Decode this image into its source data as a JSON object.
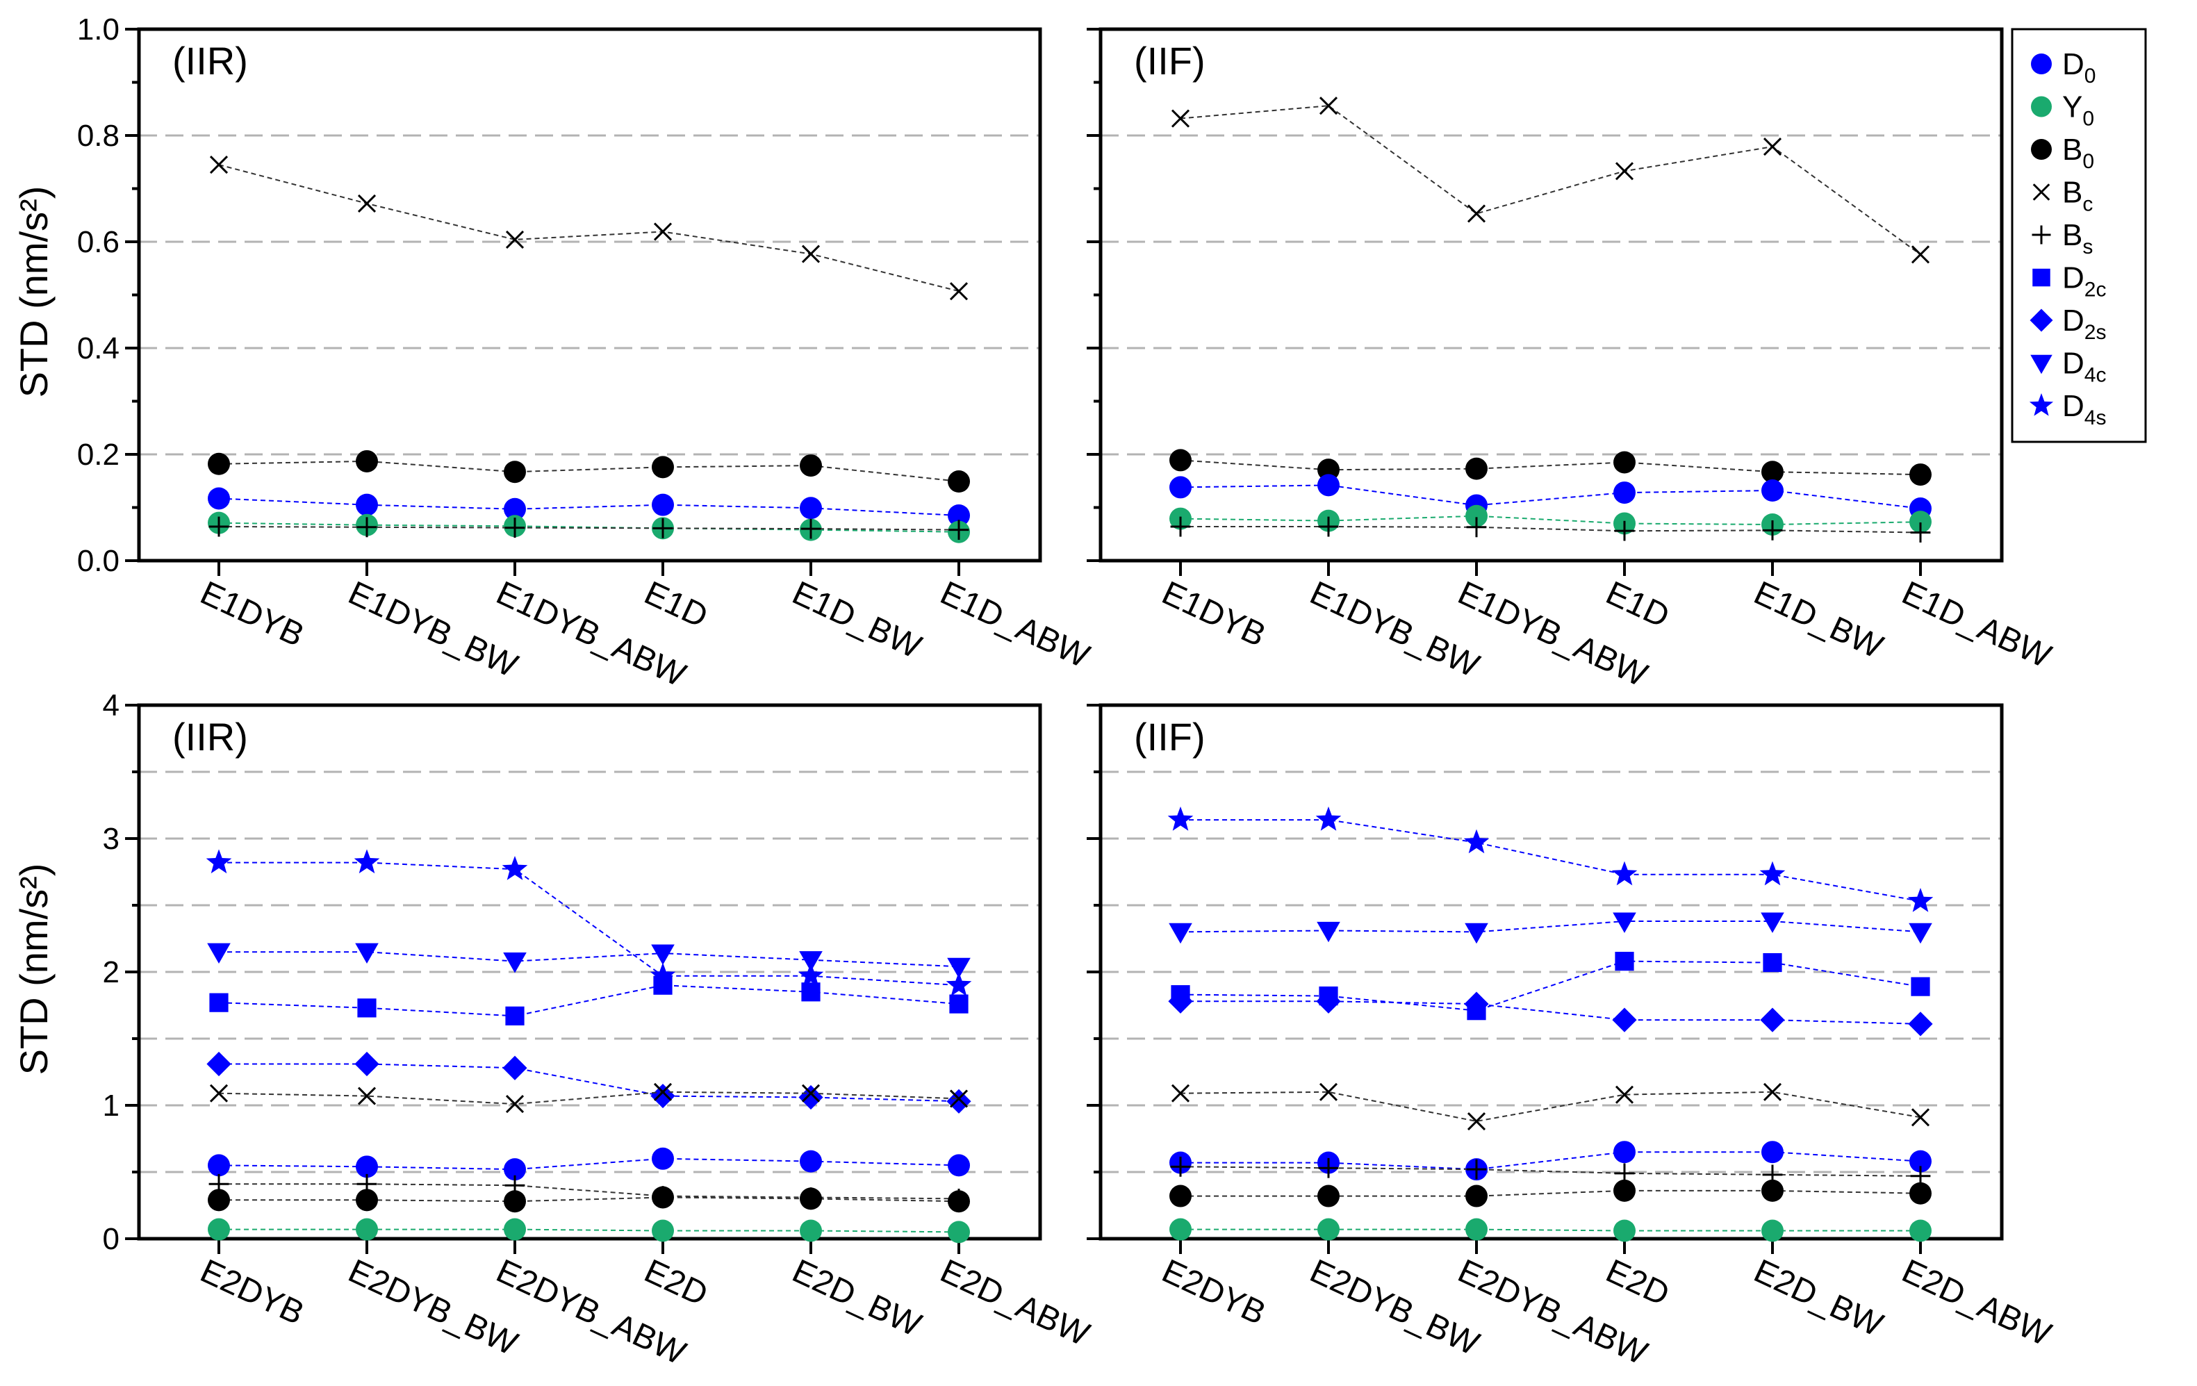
{
  "figure": {
    "ylabel": "STD (nm/s²)"
  },
  "legend": {
    "items": [
      {
        "key": "D0",
        "main": "D",
        "sub": "0",
        "marker": "circle",
        "color": "#0000ff"
      },
      {
        "key": "Y0",
        "main": "Y",
        "sub": "0",
        "marker": "circle",
        "color": "#1aaa6e"
      },
      {
        "key": "B0",
        "main": "B",
        "sub": "0",
        "marker": "circle",
        "color": "#000000"
      },
      {
        "key": "Bc",
        "main": "B",
        "sub": "c",
        "marker": "x",
        "color": "#000000"
      },
      {
        "key": "Bs",
        "main": "B",
        "sub": "s",
        "marker": "plus",
        "color": "#000000"
      },
      {
        "key": "D2c",
        "main": "D",
        "sub": "2c",
        "marker": "square",
        "color": "#0000ff"
      },
      {
        "key": "D2s",
        "main": "D",
        "sub": "2s",
        "marker": "diamond",
        "color": "#0000ff"
      },
      {
        "key": "D4c",
        "main": "D",
        "sub": "4c",
        "marker": "triangle-down",
        "color": "#0000ff"
      },
      {
        "key": "D4s",
        "main": "D",
        "sub": "4s",
        "marker": "star",
        "color": "#0000ff"
      }
    ]
  },
  "chart_data": [
    {
      "type": "line",
      "panel_label": "(IIR)",
      "categories": [
        "E1DYB",
        "E1DYB_BW",
        "E1DYB_ABW",
        "E1D",
        "E1D_BW",
        "E1D_ABW"
      ],
      "ylim": [
        0,
        1.0
      ],
      "yticks": [
        "0.0",
        "0.2",
        "0.4",
        "0.6",
        "0.8",
        "1.0"
      ],
      "ytick_values": [
        0,
        0.2,
        0.4,
        0.6,
        0.8,
        1.0
      ],
      "minor_step": 0.1,
      "gridlines": [
        0.2,
        0.4,
        0.6,
        0.8
      ],
      "series": [
        {
          "name": "Bc",
          "values": [
            0.745,
            0.672,
            0.604,
            0.619,
            0.577,
            0.507
          ]
        },
        {
          "name": "B0",
          "values": [
            0.182,
            0.187,
            0.167,
            0.176,
            0.179,
            0.149
          ]
        },
        {
          "name": "D0",
          "values": [
            0.117,
            0.105,
            0.097,
            0.105,
            0.099,
            0.085
          ]
        },
        {
          "name": "Y0",
          "values": [
            0.071,
            0.067,
            0.065,
            0.061,
            0.058,
            0.054
          ]
        },
        {
          "name": "Bs",
          "values": [
            0.064,
            0.063,
            0.062,
            0.061,
            0.06,
            0.058
          ]
        }
      ]
    },
    {
      "type": "line",
      "panel_label": "(IIF)",
      "categories": [
        "E1DYB",
        "E1DYB_BW",
        "E1DYB_ABW",
        "E1D",
        "E1D_BW",
        "E1D_ABW"
      ],
      "ylim": [
        0,
        1.0
      ],
      "yticks": [
        "0.0",
        "0.2",
        "0.4",
        "0.6",
        "0.8",
        "1.0"
      ],
      "ytick_values": [
        0,
        0.2,
        0.4,
        0.6,
        0.8,
        1.0
      ],
      "minor_step": 0.1,
      "gridlines": [
        0.2,
        0.4,
        0.6,
        0.8
      ],
      "series": [
        {
          "name": "Bc",
          "values": [
            0.832,
            0.856,
            0.653,
            0.733,
            0.779,
            0.576
          ]
        },
        {
          "name": "B0",
          "values": [
            0.189,
            0.171,
            0.173,
            0.185,
            0.167,
            0.162
          ]
        },
        {
          "name": "D0",
          "values": [
            0.138,
            0.142,
            0.104,
            0.128,
            0.132,
            0.098
          ]
        },
        {
          "name": "Y0",
          "values": [
            0.079,
            0.075,
            0.084,
            0.07,
            0.068,
            0.073
          ]
        },
        {
          "name": "Bs",
          "values": [
            0.064,
            0.064,
            0.063,
            0.056,
            0.057,
            0.053
          ]
        }
      ]
    },
    {
      "type": "line",
      "panel_label": "(IIR)",
      "categories": [
        "E2DYB",
        "E2DYB_BW",
        "E2DYB_ABW",
        "E2D",
        "E2D_BW",
        "E2D_ABW"
      ],
      "ylim": [
        0,
        4
      ],
      "yticks": [
        "0",
        "1",
        "2",
        "3",
        "4"
      ],
      "ytick_values": [
        0,
        1,
        2,
        3,
        4
      ],
      "minor_step": 0.5,
      "gridlines": [
        0.5,
        1.0,
        1.5,
        2.0,
        2.5,
        3.0,
        3.5
      ],
      "series": [
        {
          "name": "D4s",
          "values": [
            2.82,
            2.82,
            2.77,
            1.97,
            1.97,
            1.9
          ]
        },
        {
          "name": "D4c",
          "values": [
            2.15,
            2.15,
            2.08,
            2.14,
            2.09,
            2.04
          ]
        },
        {
          "name": "D2c",
          "values": [
            1.77,
            1.73,
            1.67,
            1.9,
            1.85,
            1.76
          ]
        },
        {
          "name": "D2s",
          "values": [
            1.31,
            1.31,
            1.28,
            1.07,
            1.06,
            1.03
          ]
        },
        {
          "name": "Bc",
          "values": [
            1.09,
            1.07,
            1.01,
            1.1,
            1.09,
            1.05
          ]
        },
        {
          "name": "D0",
          "values": [
            0.55,
            0.54,
            0.52,
            0.6,
            0.58,
            0.55
          ]
        },
        {
          "name": "Bs",
          "values": [
            0.41,
            0.41,
            0.4,
            0.32,
            0.31,
            0.3
          ]
        },
        {
          "name": "B0",
          "values": [
            0.29,
            0.29,
            0.28,
            0.31,
            0.3,
            0.28
          ]
        },
        {
          "name": "Y0",
          "values": [
            0.07,
            0.07,
            0.07,
            0.06,
            0.06,
            0.05
          ]
        }
      ]
    },
    {
      "type": "line",
      "panel_label": "(IIF)",
      "categories": [
        "E2DYB",
        "E2DYB_BW",
        "E2DYB_ABW",
        "E2D",
        "E2D_BW",
        "E2D_ABW"
      ],
      "ylim": [
        0,
        4
      ],
      "yticks": [
        "0",
        "1",
        "2",
        "3",
        "4"
      ],
      "ytick_values": [
        0,
        1,
        2,
        3,
        4
      ],
      "minor_step": 0.5,
      "gridlines": [
        0.5,
        1.0,
        1.5,
        2.0,
        2.5,
        3.0,
        3.5
      ],
      "series": [
        {
          "name": "D4s",
          "values": [
            3.14,
            3.14,
            2.97,
            2.73,
            2.73,
            2.53
          ]
        },
        {
          "name": "D4c",
          "values": [
            2.3,
            2.31,
            2.3,
            2.38,
            2.38,
            2.3
          ]
        },
        {
          "name": "D2c",
          "values": [
            1.83,
            1.82,
            1.71,
            2.08,
            2.07,
            1.89
          ]
        },
        {
          "name": "D2s",
          "values": [
            1.78,
            1.78,
            1.76,
            1.64,
            1.64,
            1.61
          ]
        },
        {
          "name": "Bc",
          "values": [
            1.09,
            1.1,
            0.88,
            1.08,
            1.1,
            0.91
          ]
        },
        {
          "name": "D0",
          "values": [
            0.57,
            0.57,
            0.52,
            0.65,
            0.65,
            0.58
          ]
        },
        {
          "name": "Bs",
          "values": [
            0.54,
            0.53,
            0.52,
            0.49,
            0.48,
            0.47
          ]
        },
        {
          "name": "B0",
          "values": [
            0.32,
            0.32,
            0.32,
            0.36,
            0.36,
            0.34
          ]
        },
        {
          "name": "Y0",
          "values": [
            0.07,
            0.07,
            0.07,
            0.06,
            0.06,
            0.06
          ]
        }
      ]
    }
  ]
}
